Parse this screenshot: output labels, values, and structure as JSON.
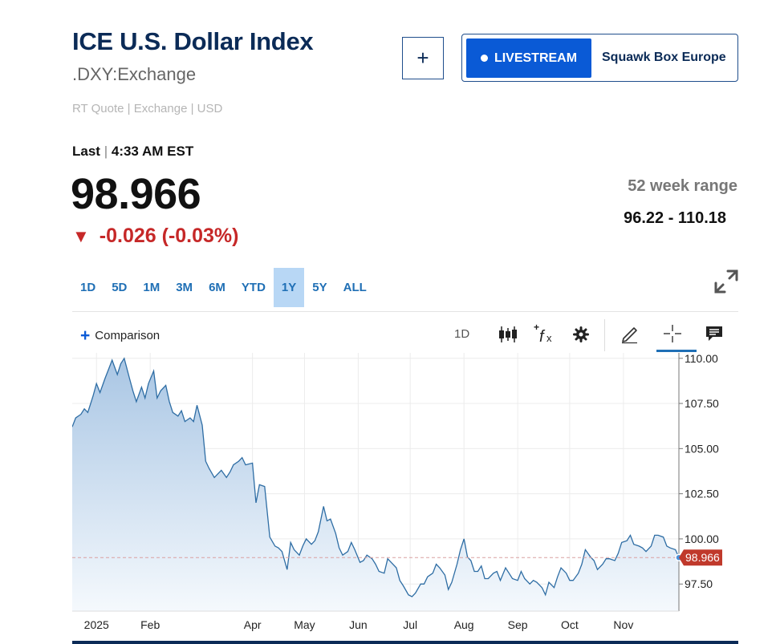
{
  "header": {
    "title": "ICE U.S. Dollar Index",
    "symbol": ".DXY:Exchange",
    "quote_meta": "RT Quote | Exchange | USD",
    "add_label": "+",
    "livestream_label": "LIVESTREAM",
    "show_name": "Squawk Box Europe"
  },
  "quote": {
    "last_label": "Last",
    "sep": "|",
    "time": "4:33 AM EST",
    "price": "98.966",
    "change": "-0.026 (-0.03%)",
    "range_label": "52 week range",
    "range_value": "96.22 - 110.18"
  },
  "tabs": [
    {
      "label": "1D"
    },
    {
      "label": "5D"
    },
    {
      "label": "1M"
    },
    {
      "label": "3M"
    },
    {
      "label": "6M"
    },
    {
      "label": "YTD"
    },
    {
      "label": "1Y",
      "active": true
    },
    {
      "label": "5Y"
    },
    {
      "label": "ALL"
    }
  ],
  "toolbar": {
    "comparison_label": "Comparison",
    "interval_label": "1D",
    "icons": [
      "candlestick-icon",
      "function-icon",
      "gear-icon",
      "pencil-icon",
      "crosshair-icon",
      "comment-icon"
    ]
  },
  "colors": {
    "line": "#2e6da4",
    "area_top": "#a9c6e4",
    "area_bottom": "#f5f9fd",
    "marker": "#c0392b",
    "accent": "#0a5ad6",
    "down": "#c62828"
  },
  "chart_data": {
    "type": "area",
    "ylim": [
      96.0,
      110.3
    ],
    "yticks": [
      97.5,
      100.0,
      102.5,
      105.0,
      107.5,
      110.0
    ],
    "ytick_labels": [
      "97.50",
      "100.00",
      "102.50",
      "105.00",
      "107.50",
      "110.00"
    ],
    "xlim": [
      "2024-12-18",
      "2025-12-03"
    ],
    "xtick_dates": [
      "2025-01-01",
      "2025-02-01",
      "2025-04-01",
      "2025-05-01",
      "2025-06-01",
      "2025-07-01",
      "2025-08-01",
      "2025-09-01",
      "2025-10-01",
      "2025-11-01"
    ],
    "xtick_labels": [
      "2025",
      "Feb",
      "Apr",
      "May",
      "Jun",
      "Jul",
      "Aug",
      "Sep",
      "Oct",
      "Nov"
    ],
    "current_value": 98.966,
    "current_label": "98.966",
    "grid": true,
    "points": [
      [
        "2024-12-18",
        106.2
      ],
      [
        "2024-12-20",
        106.7
      ],
      [
        "2024-12-23",
        106.9
      ],
      [
        "2024-12-25",
        107.2
      ],
      [
        "2024-12-27",
        107.0
      ],
      [
        "2024-12-30",
        107.9
      ],
      [
        "2025-01-01",
        108.6
      ],
      [
        "2025-01-03",
        108.1
      ],
      [
        "2025-01-06",
        108.9
      ],
      [
        "2025-01-08",
        109.4
      ],
      [
        "2025-01-10",
        109.9
      ],
      [
        "2025-01-13",
        109.1
      ],
      [
        "2025-01-15",
        109.7
      ],
      [
        "2025-01-17",
        110.0
      ],
      [
        "2025-01-20",
        108.9
      ],
      [
        "2025-01-22",
        108.2
      ],
      [
        "2025-01-24",
        107.6
      ],
      [
        "2025-01-27",
        108.4
      ],
      [
        "2025-01-29",
        107.8
      ],
      [
        "2025-01-31",
        108.6
      ],
      [
        "2025-02-03",
        109.3
      ],
      [
        "2025-02-05",
        107.8
      ],
      [
        "2025-02-07",
        108.2
      ],
      [
        "2025-02-10",
        108.5
      ],
      [
        "2025-02-12",
        107.6
      ],
      [
        "2025-02-14",
        107.0
      ],
      [
        "2025-02-17",
        106.8
      ],
      [
        "2025-02-19",
        107.1
      ],
      [
        "2025-02-21",
        106.5
      ],
      [
        "2025-02-24",
        106.7
      ],
      [
        "2025-02-26",
        106.5
      ],
      [
        "2025-02-28",
        107.4
      ],
      [
        "2025-03-03",
        106.3
      ],
      [
        "2025-03-05",
        104.3
      ],
      [
        "2025-03-07",
        103.9
      ],
      [
        "2025-03-10",
        103.4
      ],
      [
        "2025-03-12",
        103.6
      ],
      [
        "2025-03-14",
        103.8
      ],
      [
        "2025-03-17",
        103.4
      ],
      [
        "2025-03-19",
        103.7
      ],
      [
        "2025-03-21",
        104.1
      ],
      [
        "2025-03-24",
        104.3
      ],
      [
        "2025-03-26",
        104.5
      ],
      [
        "2025-03-28",
        104.1
      ],
      [
        "2025-04-01",
        104.2
      ],
      [
        "2025-04-03",
        102.0
      ],
      [
        "2025-04-05",
        103.0
      ],
      [
        "2025-04-08",
        102.9
      ],
      [
        "2025-04-11",
        100.1
      ],
      [
        "2025-04-14",
        99.6
      ],
      [
        "2025-04-16",
        99.5
      ],
      [
        "2025-04-18",
        99.3
      ],
      [
        "2025-04-21",
        98.3
      ],
      [
        "2025-04-23",
        99.8
      ],
      [
        "2025-04-25",
        99.4
      ],
      [
        "2025-04-28",
        99.1
      ],
      [
        "2025-04-30",
        99.6
      ],
      [
        "2025-05-02",
        100.0
      ],
      [
        "2025-05-05",
        99.7
      ],
      [
        "2025-05-07",
        99.9
      ],
      [
        "2025-05-09",
        100.4
      ],
      [
        "2025-05-12",
        101.8
      ],
      [
        "2025-05-14",
        101.0
      ],
      [
        "2025-05-16",
        101.1
      ],
      [
        "2025-05-19",
        100.3
      ],
      [
        "2025-05-21",
        99.5
      ],
      [
        "2025-05-23",
        99.1
      ],
      [
        "2025-05-26",
        99.3
      ],
      [
        "2025-05-28",
        99.8
      ],
      [
        "2025-05-30",
        99.4
      ],
      [
        "2025-06-02",
        98.7
      ],
      [
        "2025-06-04",
        98.8
      ],
      [
        "2025-06-06",
        99.1
      ],
      [
        "2025-06-09",
        98.9
      ],
      [
        "2025-06-11",
        98.6
      ],
      [
        "2025-06-13",
        98.2
      ],
      [
        "2025-06-16",
        98.1
      ],
      [
        "2025-06-18",
        98.9
      ],
      [
        "2025-06-20",
        98.7
      ],
      [
        "2025-06-23",
        98.4
      ],
      [
        "2025-06-25",
        97.7
      ],
      [
        "2025-06-27",
        97.4
      ],
      [
        "2025-06-30",
        96.9
      ],
      [
        "2025-07-02",
        96.8
      ],
      [
        "2025-07-04",
        97.0
      ],
      [
        "2025-07-07",
        97.5
      ],
      [
        "2025-07-09",
        97.5
      ],
      [
        "2025-07-11",
        97.9
      ],
      [
        "2025-07-14",
        98.1
      ],
      [
        "2025-07-16",
        98.6
      ],
      [
        "2025-07-18",
        98.4
      ],
      [
        "2025-07-21",
        98.0
      ],
      [
        "2025-07-23",
        97.2
      ],
      [
        "2025-07-25",
        97.6
      ],
      [
        "2025-07-28",
        98.6
      ],
      [
        "2025-07-30",
        99.4
      ],
      [
        "2025-08-01",
        100.0
      ],
      [
        "2025-08-03",
        99.0
      ],
      [
        "2025-08-05",
        98.8
      ],
      [
        "2025-08-07",
        98.2
      ],
      [
        "2025-08-09",
        98.2
      ],
      [
        "2025-08-11",
        98.5
      ],
      [
        "2025-08-13",
        97.8
      ],
      [
        "2025-08-15",
        97.8
      ],
      [
        "2025-08-18",
        98.1
      ],
      [
        "2025-08-20",
        98.2
      ],
      [
        "2025-08-22",
        97.7
      ],
      [
        "2025-08-25",
        98.4
      ],
      [
        "2025-08-27",
        98.1
      ],
      [
        "2025-08-29",
        97.8
      ],
      [
        "2025-09-01",
        97.7
      ],
      [
        "2025-09-03",
        98.2
      ],
      [
        "2025-09-05",
        97.8
      ],
      [
        "2025-09-08",
        97.5
      ],
      [
        "2025-09-10",
        97.7
      ],
      [
        "2025-09-12",
        97.6
      ],
      [
        "2025-09-15",
        97.3
      ],
      [
        "2025-09-17",
        96.9
      ],
      [
        "2025-09-19",
        97.6
      ],
      [
        "2025-09-22",
        97.3
      ],
      [
        "2025-09-24",
        97.9
      ],
      [
        "2025-09-26",
        98.4
      ],
      [
        "2025-09-29",
        98.1
      ],
      [
        "2025-10-01",
        97.7
      ],
      [
        "2025-10-03",
        97.7
      ],
      [
        "2025-10-06",
        98.1
      ],
      [
        "2025-10-08",
        98.6
      ],
      [
        "2025-10-10",
        99.4
      ],
      [
        "2025-10-13",
        99.0
      ],
      [
        "2025-10-15",
        98.8
      ],
      [
        "2025-10-17",
        98.3
      ],
      [
        "2025-10-20",
        98.6
      ],
      [
        "2025-10-22",
        98.9
      ],
      [
        "2025-10-24",
        98.9
      ],
      [
        "2025-10-27",
        98.8
      ],
      [
        "2025-10-29",
        99.2
      ],
      [
        "2025-10-31",
        99.8
      ],
      [
        "2025-11-03",
        99.9
      ],
      [
        "2025-11-05",
        100.2
      ],
      [
        "2025-11-07",
        99.7
      ],
      [
        "2025-11-10",
        99.6
      ],
      [
        "2025-11-12",
        99.5
      ],
      [
        "2025-11-14",
        99.3
      ],
      [
        "2025-11-17",
        99.6
      ],
      [
        "2025-11-19",
        100.2
      ],
      [
        "2025-11-21",
        100.2
      ],
      [
        "2025-11-24",
        100.1
      ],
      [
        "2025-11-26",
        99.6
      ],
      [
        "2025-11-28",
        99.5
      ],
      [
        "2025-12-01",
        99.4
      ],
      [
        "2025-12-03",
        98.966
      ]
    ]
  }
}
